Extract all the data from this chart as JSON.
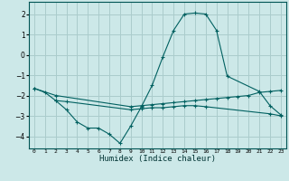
{
  "title": "",
  "xlabel": "Humidex (Indice chaleur)",
  "ylabel": "",
  "background_color": "#cce8e8",
  "grid_color": "#aacccc",
  "line_color": "#006060",
  "xlim": [
    -0.5,
    23.5
  ],
  "ylim": [
    -4.6,
    2.6
  ],
  "yticks": [
    -4,
    -3,
    -2,
    -1,
    0,
    1,
    2
  ],
  "xtick_labels": [
    "0",
    "1",
    "2",
    "3",
    "4",
    "5",
    "6",
    "7",
    "8",
    "9",
    "10",
    "11",
    "12",
    "13",
    "14",
    "15",
    "16",
    "17",
    "18",
    "19",
    "20",
    "21",
    "22",
    "23"
  ],
  "line1_x": [
    0,
    1,
    2,
    3,
    4,
    5,
    6,
    7,
    8,
    9,
    10,
    11,
    12,
    13,
    14,
    15,
    16,
    17,
    18,
    21,
    22,
    23
  ],
  "line1_y": [
    -1.65,
    -1.85,
    -2.25,
    -2.7,
    -3.3,
    -3.6,
    -3.6,
    -3.9,
    -4.35,
    -3.5,
    -2.55,
    -1.5,
    -0.1,
    1.2,
    2.0,
    2.05,
    2.0,
    1.2,
    -1.05,
    -1.8,
    -2.5,
    -2.95
  ],
  "line2_x": [
    0,
    2,
    9,
    10,
    11,
    12,
    13,
    14,
    15,
    16,
    17,
    18,
    19,
    20,
    21,
    22,
    23
  ],
  "line2_y": [
    -1.65,
    -2.0,
    -2.55,
    -2.5,
    -2.45,
    -2.4,
    -2.35,
    -2.3,
    -2.25,
    -2.2,
    -2.15,
    -2.1,
    -2.05,
    -2.0,
    -1.85,
    -1.8,
    -1.75
  ],
  "line3_x": [
    2,
    3,
    9,
    10,
    11,
    12,
    13,
    14,
    15,
    16,
    22,
    23
  ],
  "line3_y": [
    -2.25,
    -2.3,
    -2.7,
    -2.65,
    -2.6,
    -2.6,
    -2.55,
    -2.5,
    -2.5,
    -2.55,
    -2.9,
    -3.0
  ]
}
